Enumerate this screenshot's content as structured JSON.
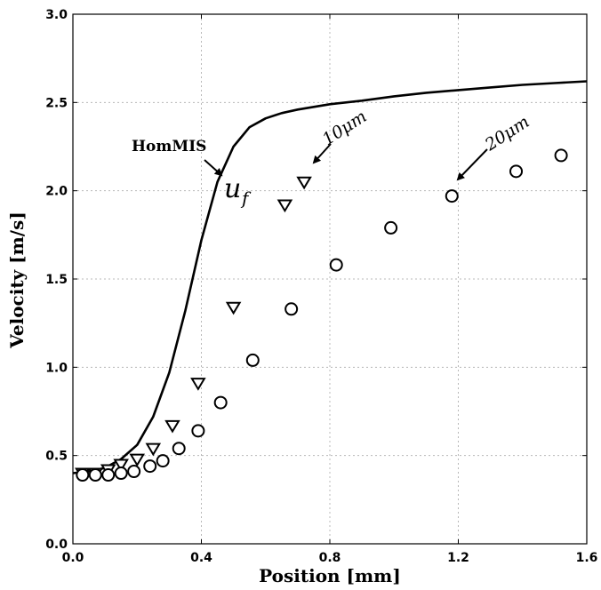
{
  "chart_data": {
    "type": "scatter",
    "title": "",
    "xlabel": "Position [mm]",
    "ylabel": "Velocity [m/s]",
    "xlim": [
      0.0,
      1.6
    ],
    "ylim": [
      0.0,
      3.0
    ],
    "x_ticks": [
      "0.0",
      "0.4",
      "0.8",
      "1.2",
      "1.6"
    ],
    "y_ticks": [
      "0.0",
      "0.5",
      "1.0",
      "1.5",
      "2.0",
      "2.5",
      "3.0"
    ],
    "grid": true,
    "series": [
      {
        "name": "HomMIS",
        "style": "line",
        "color": "#000000",
        "x": [
          0.0,
          0.05,
          0.1,
          0.15,
          0.2,
          0.25,
          0.3,
          0.35,
          0.4,
          0.45,
          0.5,
          0.55,
          0.6,
          0.65,
          0.7,
          0.8,
          0.9,
          1.0,
          1.1,
          1.2,
          1.3,
          1.4,
          1.5,
          1.6
        ],
        "y": [
          0.4,
          0.41,
          0.43,
          0.48,
          0.56,
          0.72,
          0.97,
          1.32,
          1.72,
          2.05,
          2.25,
          2.36,
          2.41,
          2.44,
          2.46,
          2.49,
          2.51,
          2.535,
          2.555,
          2.57,
          2.585,
          2.6,
          2.61,
          2.62
        ]
      },
      {
        "name": "",
        "style": "triangle-down",
        "color": "#000000",
        "x": [
          0.03,
          0.07,
          0.11,
          0.15,
          0.2,
          0.25,
          0.31,
          0.39,
          0.5,
          0.66,
          0.72
        ],
        "y": [
          0.4,
          0.4,
          0.42,
          0.45,
          0.48,
          0.54,
          0.67,
          0.91,
          1.34,
          1.92,
          2.05
        ]
      },
      {
        "name": "",
        "style": "circle",
        "color": "#000000",
        "x": [
          0.03,
          0.07,
          0.11,
          0.15,
          0.19,
          0.24,
          0.28,
          0.33,
          0.39,
          0.46,
          0.56,
          0.68,
          0.82,
          0.99,
          1.18,
          1.38,
          1.52
        ],
        "y": [
          0.39,
          0.39,
          0.39,
          0.4,
          0.41,
          0.44,
          0.47,
          0.54,
          0.64,
          0.8,
          1.04,
          1.33,
          1.58,
          1.79,
          1.97,
          2.11,
          2.2
        ]
      }
    ],
    "annotations": [
      {
        "text": "HomMIS",
        "target_x": 0.47,
        "target_y": 2.08
      },
      {
        "text": "u",
        "subscript": "f"
      },
      {
        "text": "10μm",
        "target_x": 0.73,
        "target_y": 2.15
      },
      {
        "text": "20μm",
        "target_x": 1.19,
        "target_y": 2.05
      }
    ]
  }
}
